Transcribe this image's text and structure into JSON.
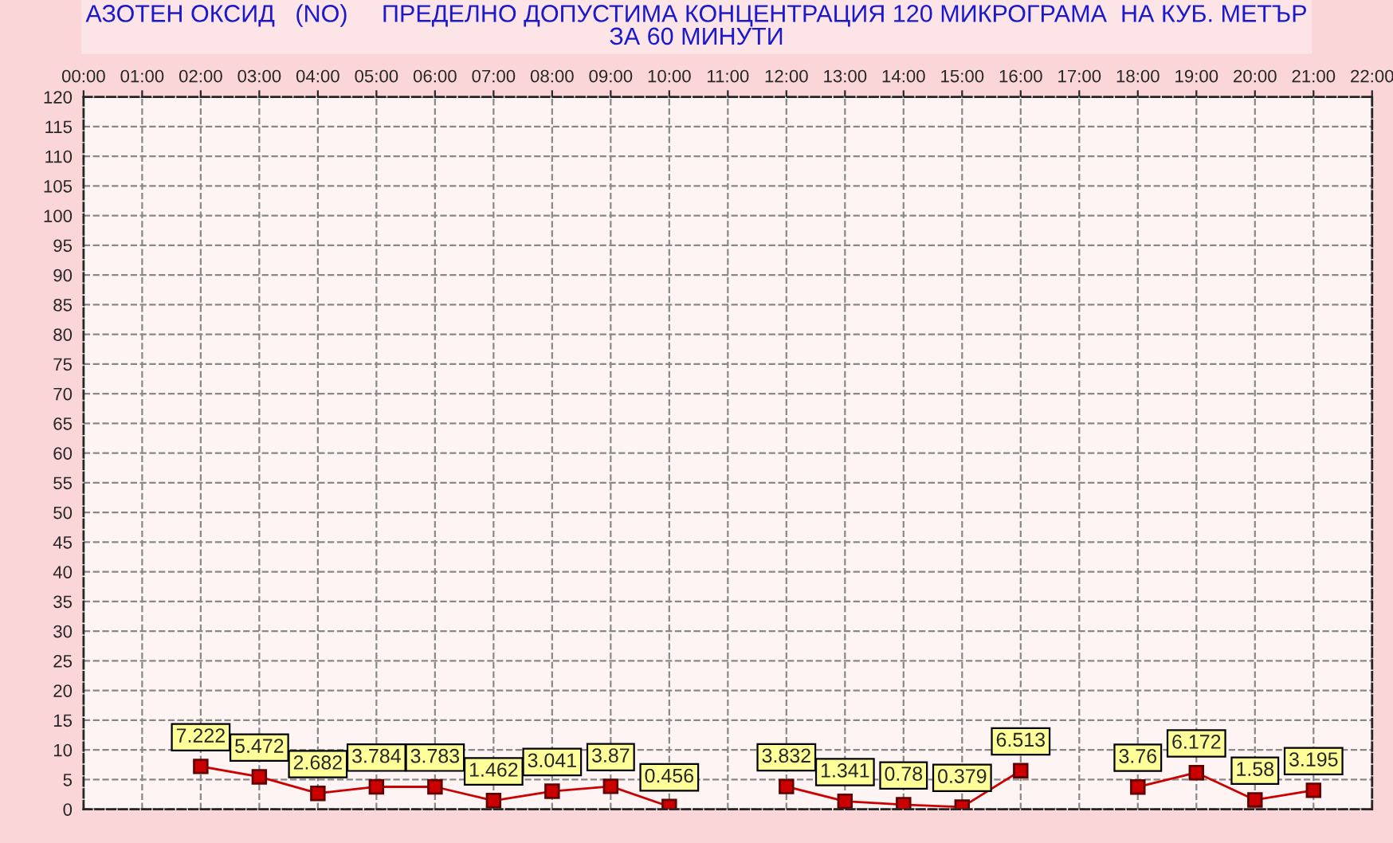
{
  "chart_data": {
    "type": "line",
    "title": "АЗОТЕН ОКСИД   (NO)     ПРЕДЕЛНО ДОПУСТИМА КОНЦЕНТРАЦИЯ 120 МИКРОГРАМА  НА КУБ. МЕТЪР\nЗА 60 МИНУТИ",
    "x": [
      2,
      3,
      4,
      5,
      6,
      7,
      8,
      9,
      10,
      11,
      12,
      13,
      14,
      15,
      16,
      17,
      18,
      19,
      20,
      21
    ],
    "series": [
      {
        "color": "#cc0000",
        "values": [
          7.222,
          5.472,
          2.682,
          3.784,
          3.783,
          1.462,
          3.041,
          3.87,
          0.456,
          null,
          3.832,
          1.341,
          0.78,
          0.379,
          6.513,
          null,
          3.76,
          6.172,
          1.58,
          3.195
        ]
      }
    ],
    "xlim": [
      0,
      22
    ],
    "xticks": [
      {
        "value": 0,
        "label": "00:00"
      },
      {
        "value": 1,
        "label": "01:00"
      },
      {
        "value": 2,
        "label": "02:00"
      },
      {
        "value": 3,
        "label": "03:00"
      },
      {
        "value": 4,
        "label": "04:00"
      },
      {
        "value": 5,
        "label": "05:00"
      },
      {
        "value": 6,
        "label": "06:00"
      },
      {
        "value": 7,
        "label": "07:00"
      },
      {
        "value": 8,
        "label": "08:00"
      },
      {
        "value": 9,
        "label": "09:00"
      },
      {
        "value": 10,
        "label": "10:00"
      },
      {
        "value": 11,
        "label": "11:00"
      },
      {
        "value": 12,
        "label": "12:00"
      },
      {
        "value": 13,
        "label": "13:00"
      },
      {
        "value": 14,
        "label": "14:00"
      },
      {
        "value": 15,
        "label": "15:00"
      },
      {
        "value": 16,
        "label": "16:00"
      },
      {
        "value": 17,
        "label": "17:00"
      },
      {
        "value": 18,
        "label": "18:00"
      },
      {
        "value": 19,
        "label": "19:00"
      },
      {
        "value": 20,
        "label": "20:00"
      },
      {
        "value": 21,
        "label": "21:00"
      },
      {
        "value": 22,
        "label": "22:00"
      }
    ],
    "ylim": [
      0,
      120
    ],
    "yticks": [
      0,
      5,
      10,
      15,
      20,
      25,
      30,
      35,
      40,
      45,
      50,
      55,
      60,
      65,
      70,
      75,
      80,
      85,
      90,
      95,
      100,
      105,
      110,
      115,
      120
    ],
    "grid": true,
    "marker": "square",
    "line_style": "solid",
    "data_labels": true
  }
}
